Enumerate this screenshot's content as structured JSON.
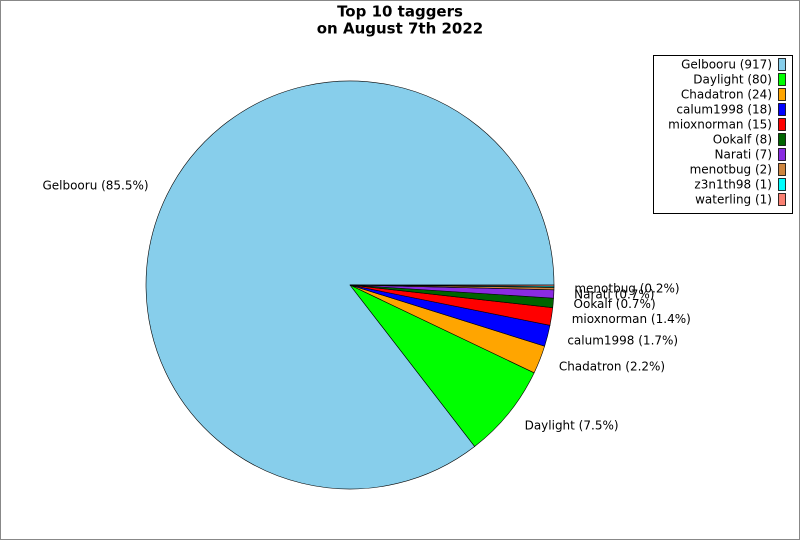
{
  "chart_data": {
    "type": "pie",
    "title": "Top 10 taggers",
    "subtitle": "on August 7th 2022",
    "categories": [
      "Gelbooru",
      "Daylight",
      "Chadatron",
      "calum1998",
      "mioxnorman",
      "Ookalf",
      "Narati",
      "menotbug",
      "z3n1th98",
      "waterling"
    ],
    "values": [
      917,
      80,
      24,
      18,
      15,
      8,
      7,
      2,
      1,
      1
    ],
    "legend_labels": [
      "Gelbooru (917)",
      "Daylight (80)",
      "Chadatron (24)",
      "calum1998 (18)",
      "mioxnorman (15)",
      "Ookalf (8)",
      "Narati (7)",
      "menotbug (2)",
      "z3n1th98 (1)",
      "waterling (1)"
    ],
    "slice_labels": [
      "Gelbooru (85.5%)",
      "Daylight (7.5%)",
      "Chadatron (2.2%)",
      "calum1998 (1.7%)",
      "mioxnorman (1.4%)",
      "Ookalf (0.7%)",
      "Narati (0.7%)",
      "menotbug (0.2%)",
      null,
      null
    ],
    "colors": [
      "#87ceeb",
      "#00ff00",
      "#ffa500",
      "#0000ff",
      "#ff0000",
      "#006400",
      "#8a2be2",
      "#cd853f",
      "#00ffff",
      "#fa8072"
    ],
    "legend": "upper right"
  }
}
